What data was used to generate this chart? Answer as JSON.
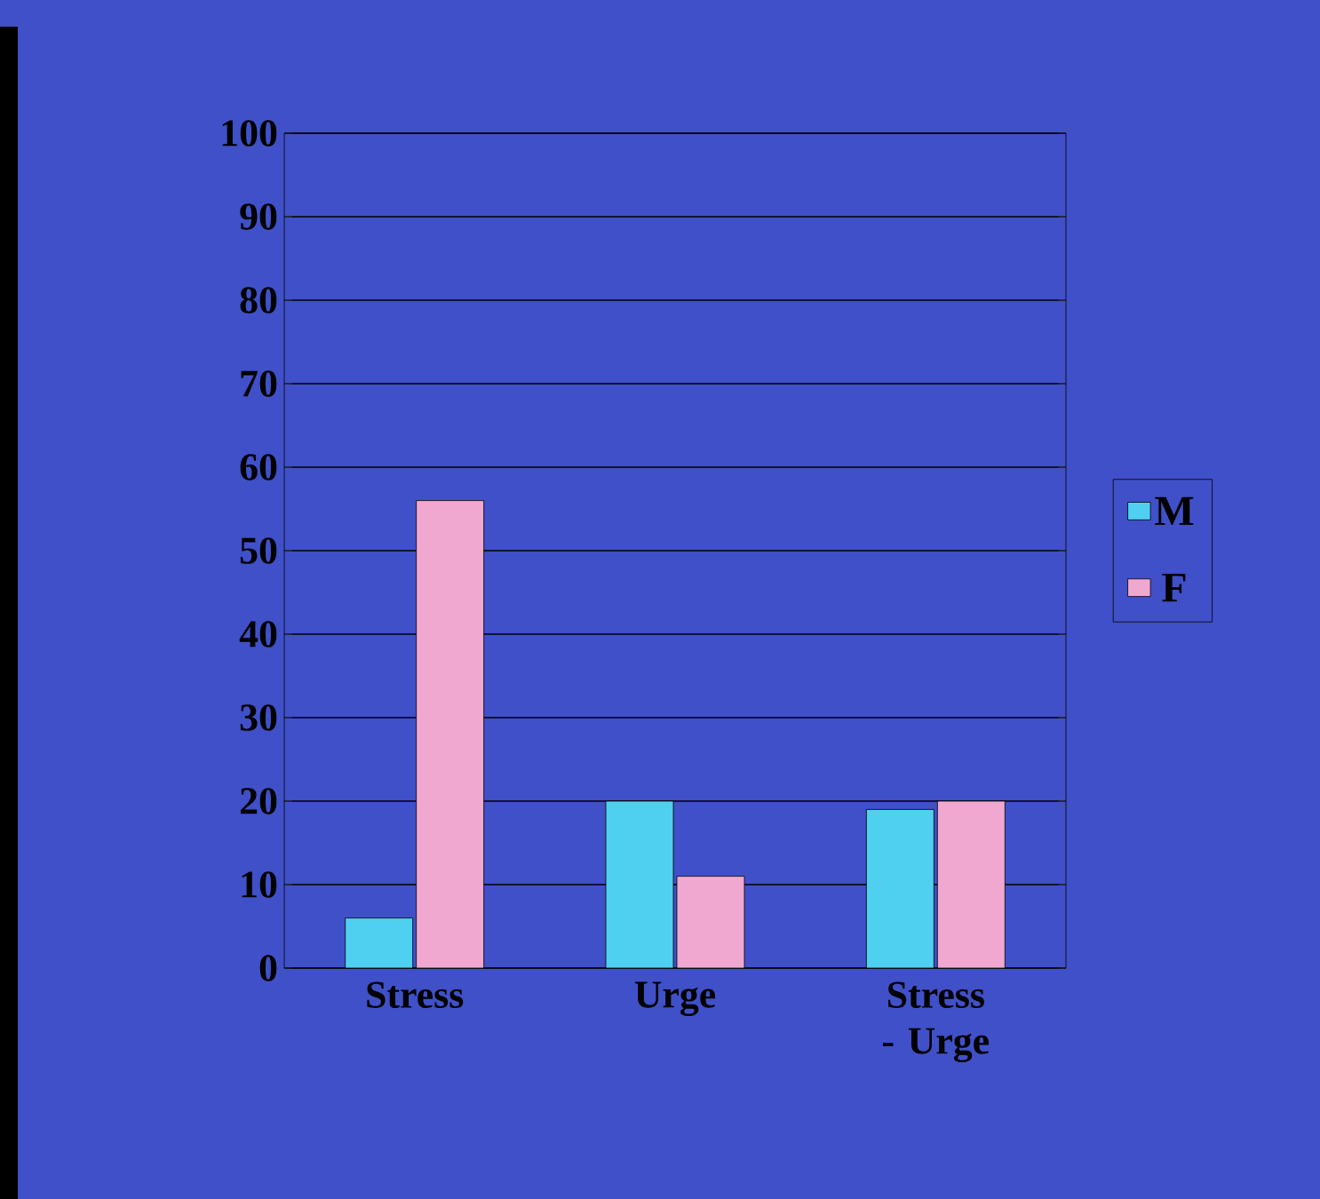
{
  "chart_data": {
    "type": "bar",
    "categories": [
      "Stress",
      "Urge",
      "Stress - Urge"
    ],
    "series": [
      {
        "name": "M",
        "color": "#4fd0f0",
        "values": [
          6,
          20,
          19
        ]
      },
      {
        "name": "F",
        "color": "#f0a8d0",
        "values": [
          56,
          11,
          20
        ]
      }
    ],
    "ylim": [
      0,
      100
    ],
    "yticks": [
      0,
      10,
      20,
      30,
      40,
      50,
      60,
      70,
      80,
      90,
      100
    ],
    "grid": "y",
    "legend": "right"
  }
}
